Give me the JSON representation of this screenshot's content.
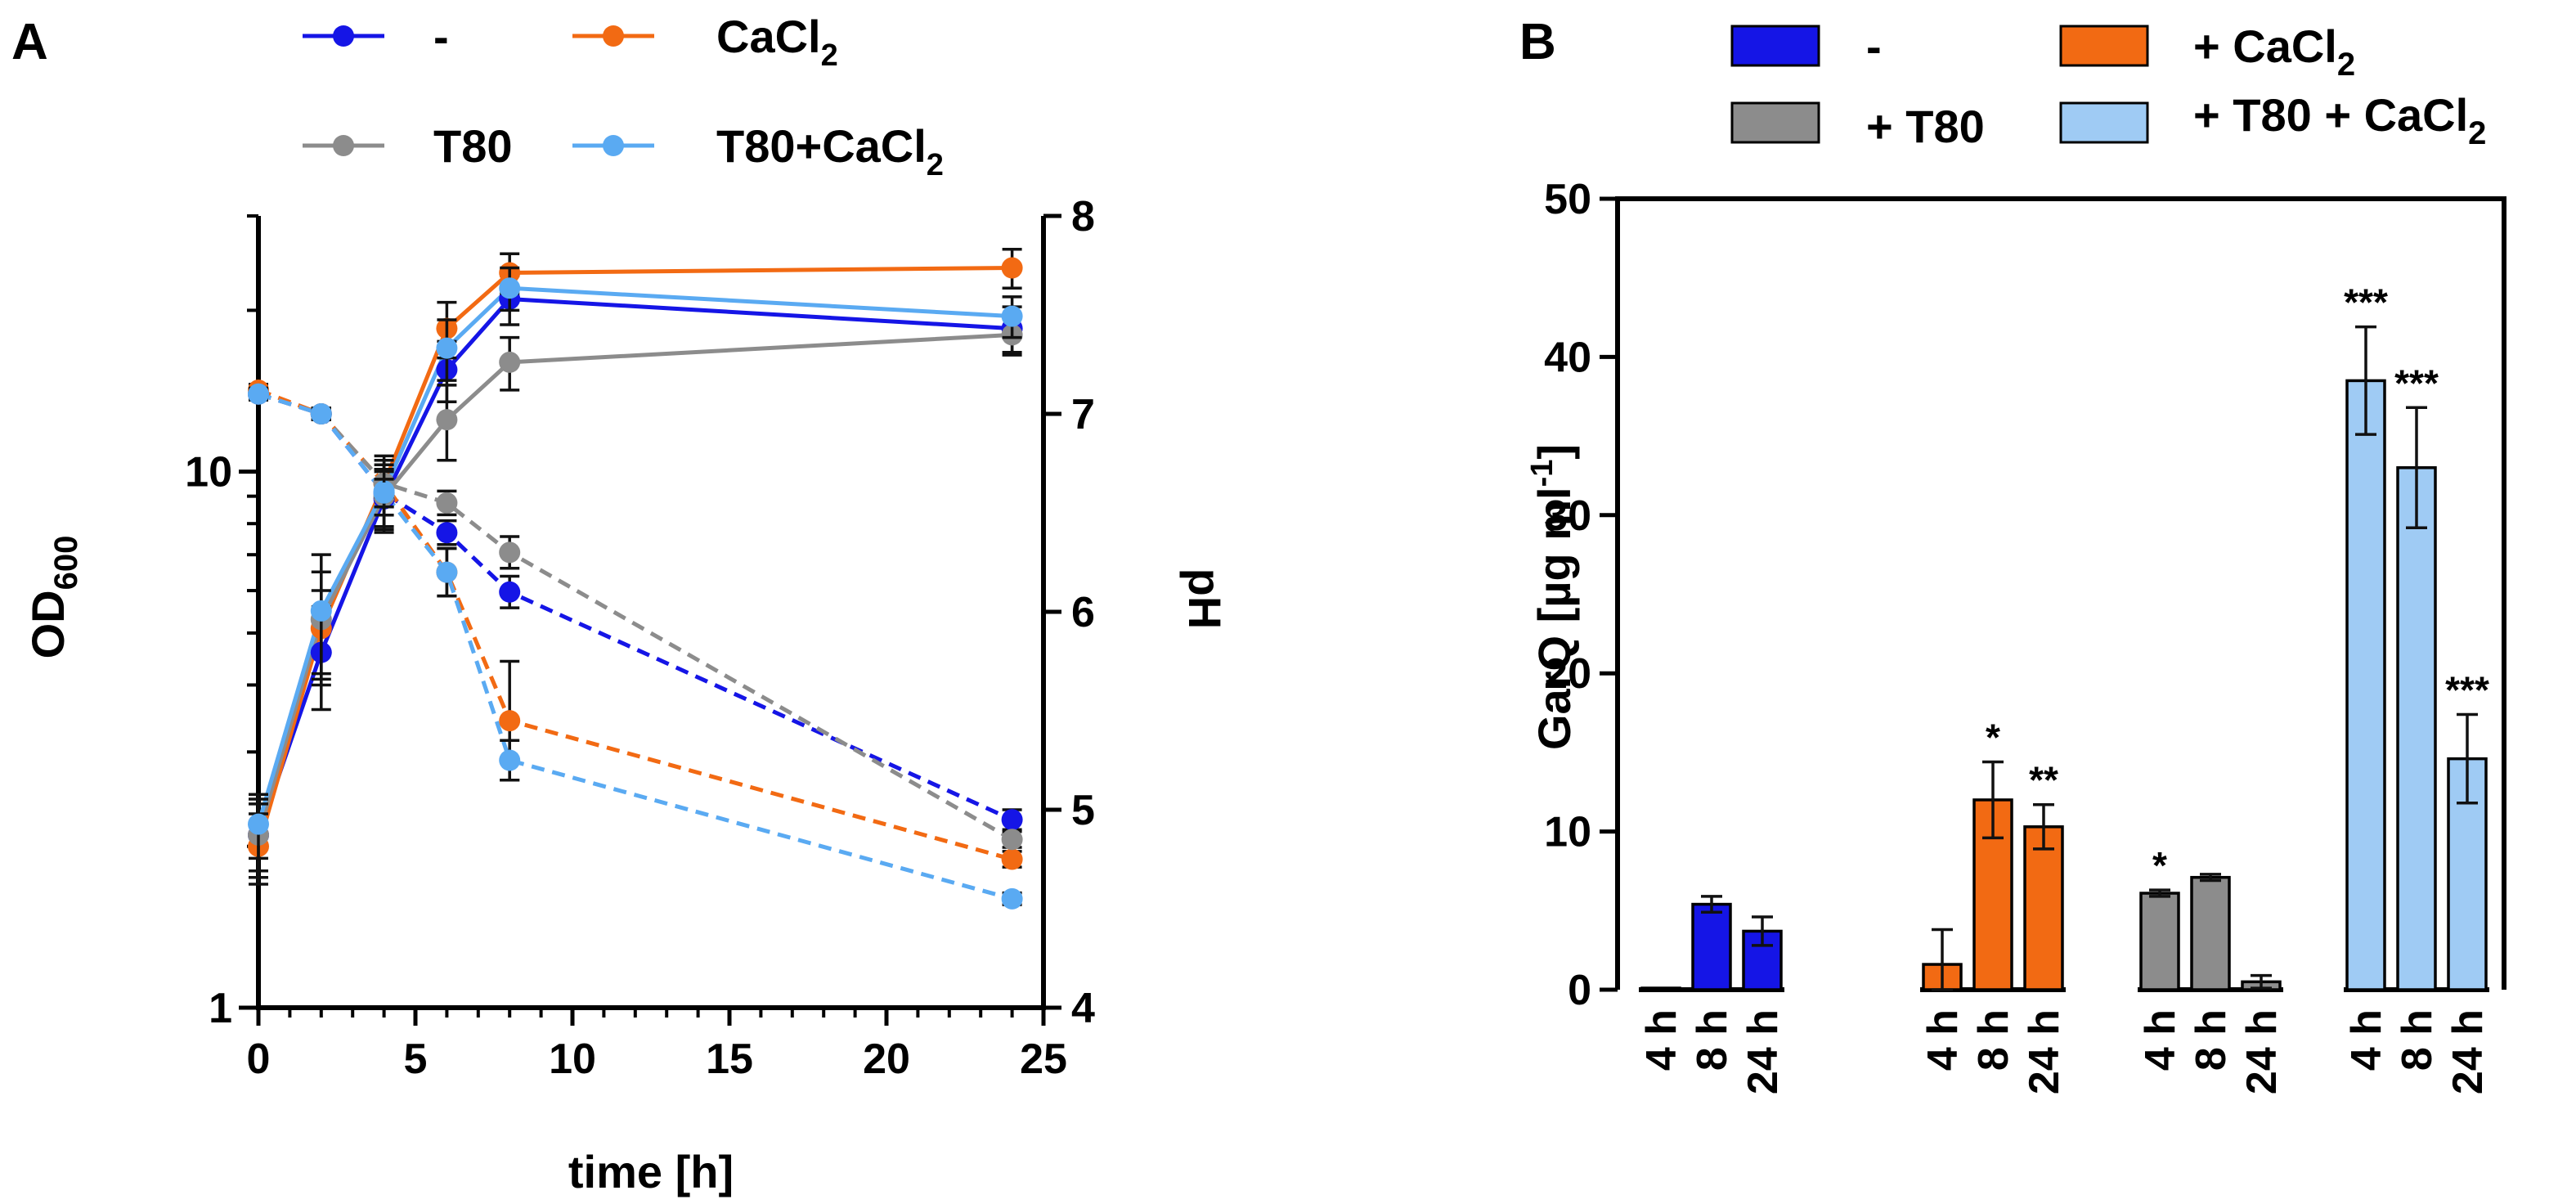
{
  "chart_data": [
    {
      "panel": "A",
      "type": "line",
      "xlabel": "time [h]",
      "ylabel_left": "OD",
      "ylabel_left_sub": "600",
      "ylabel_right": "pH",
      "xlim": [
        0,
        25
      ],
      "ylim_left": [
        1,
        30
      ],
      "ylim_right": [
        4,
        8
      ],
      "y_left_scale": "log",
      "xticks": [
        0,
        5,
        10,
        15,
        20,
        25
      ],
      "y_left_ticks": [
        1,
        10
      ],
      "y_right_ticks": [
        4,
        5,
        6,
        7,
        8
      ],
      "legend_position": "top",
      "series": [
        {
          "name": "-",
          "color": "#1515e6",
          "od": {
            "x": [
              0,
              2,
              4,
              6,
              8,
              24
            ],
            "y": [
              2.1,
              4.6,
              8.9,
              15.5,
              21.0,
              18.5
            ],
            "err": [
              0.35,
              1.0,
              1.1,
              2.0,
              2.2,
              1.8
            ]
          },
          "ph": {
            "x": [
              0,
              2,
              4,
              6,
              8,
              24
            ],
            "y": [
              7.1,
              7.0,
              6.6,
              6.4,
              6.1,
              4.95
            ],
            "err": [
              0.03,
              0.03,
              0.07,
              0.06,
              0.08,
              0.05
            ]
          }
        },
        {
          "name": "CaCl2",
          "color": "#f26a13",
          "od": {
            "x": [
              0,
              2,
              4,
              6,
              8,
              24
            ],
            "y": [
              2.0,
              5.1,
              9.5,
              18.5,
              23.5,
              24.0
            ],
            "err": [
              0.3,
              0.9,
              1.2,
              2.2,
              2.0,
              2.0
            ]
          },
          "ph": {
            "x": [
              0,
              2,
              4,
              6,
              8,
              24
            ],
            "y": [
              7.12,
              7.0,
              6.65,
              6.2,
              5.45,
              4.75
            ],
            "err": [
              0.03,
              0.03,
              0.07,
              0.12,
              0.3,
              0.04
            ]
          }
        },
        {
          "name": "T80",
          "color": "#8c8c8c",
          "od": {
            "x": [
              0,
              2,
              4,
              6,
              8,
              24
            ],
            "y": [
              2.1,
              5.3,
              9.0,
              12.5,
              16.0,
              18.0
            ],
            "err": [
              0.3,
              1.2,
              1.3,
              2.0,
              1.8,
              1.5
            ]
          },
          "ph": {
            "x": [
              0,
              2,
              4,
              6,
              8,
              24
            ],
            "y": [
              7.1,
              7.0,
              6.65,
              6.55,
              6.3,
              4.85
            ],
            "err": [
              0.03,
              0.03,
              0.07,
              0.06,
              0.08,
              0.04
            ]
          }
        },
        {
          "name": "T80+CaCl2",
          "color": "#5aaaf2",
          "od": {
            "x": [
              0,
              2,
              4,
              6,
              8,
              24
            ],
            "y": [
              2.2,
              5.5,
              9.2,
              17.0,
              22.0,
              19.5
            ],
            "err": [
              0.3,
              1.5,
              1.3,
              2.2,
              2.0,
              1.7
            ]
          },
          "ph": {
            "x": [
              0,
              2,
              4,
              6,
              8,
              24
            ],
            "y": [
              7.1,
              7.0,
              6.6,
              6.2,
              5.25,
              4.55
            ],
            "err": [
              0.03,
              0.03,
              0.07,
              0.12,
              0.1,
              0.03
            ]
          }
        }
      ]
    },
    {
      "panel": "B",
      "type": "bar",
      "ylabel": "GarQ [µg ml",
      "ylabel_sup": "-1",
      "ylabel_close": "]",
      "ylim": [
        0,
        50
      ],
      "yticks": [
        0,
        10,
        20,
        30,
        40,
        50
      ],
      "legend_position": "top",
      "groups": [
        {
          "name": "-",
          "color": "#1515e6",
          "times": [
            "4 h",
            "8 h",
            "24 h"
          ],
          "values": [
            0.05,
            5.4,
            3.7
          ],
          "err": [
            0.0,
            0.5,
            0.9
          ],
          "stars": [
            "",
            "",
            ""
          ]
        },
        {
          "name": "+ CaCl2",
          "color": "#f26a13",
          "times": [
            "4 h",
            "8 h",
            "24 h"
          ],
          "values": [
            1.6,
            12.0,
            10.3
          ],
          "err": [
            2.2,
            2.4,
            1.4
          ],
          "stars": [
            "",
            "*",
            "**"
          ]
        },
        {
          "name": "+ T80",
          "color": "#8c8c8c",
          "times": [
            "4 h",
            "8 h",
            "24 h"
          ],
          "values": [
            6.1,
            7.1,
            0.5
          ],
          "err": [
            0.2,
            0.2,
            0.4
          ],
          "stars": [
            "*",
            "",
            ""
          ]
        },
        {
          "name": "+ T80 + CaCl2",
          "color": "#9fcbf4",
          "times": [
            "4 h",
            "8 h",
            "24 h"
          ],
          "values": [
            38.5,
            33.0,
            14.6
          ],
          "err": [
            3.4,
            3.8,
            2.8
          ],
          "stars": [
            "***",
            "***",
            "***"
          ]
        }
      ]
    }
  ],
  "legendA": {
    "s1": "-",
    "s2a": "CaCl",
    "s2sub": "2",
    "s3": "T80",
    "s4a": "T80+CaCl",
    "s4sub": "2"
  },
  "legendB": {
    "s1": "-",
    "s2a": "+ CaCl",
    "s2sub": "2",
    "s3": "+ T80",
    "s4a": "+ T80 + CaCl",
    "s4sub": "2"
  },
  "panels": {
    "a": "A",
    "b": "B"
  },
  "colors": {
    "blue": "#1515e6",
    "orange": "#f26a13",
    "gray": "#8c8c8c",
    "lightblue": "#5aaaf2",
    "lightblue_bar": "#9fcbf4"
  }
}
